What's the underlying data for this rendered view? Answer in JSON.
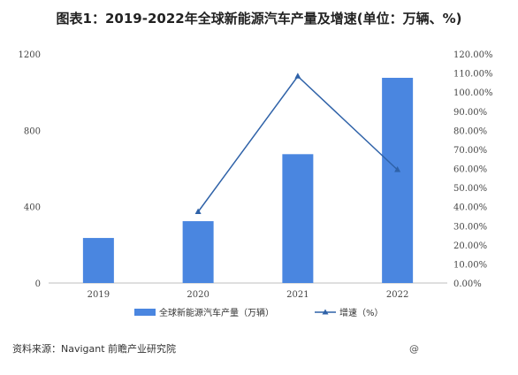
{
  "chart_data": {
    "type": "bar",
    "title": "图表1：2019-2022年全球新能源汽车产量及增速(单位：万辆、%)",
    "categories": [
      "2019",
      "2020",
      "2021",
      "2022"
    ],
    "series": [
      {
        "name": "全球新能源汽车产量（万辆）",
        "type": "bar",
        "axis": "left",
        "values": [
          236,
          324,
          675,
          1075
        ],
        "color": "#4a86e0"
      },
      {
        "name": "增速（%）",
        "type": "line",
        "axis": "right",
        "values": [
          null,
          37.3,
          108.3,
          59.3
        ],
        "color": "#2f62a8"
      }
    ],
    "y_left": {
      "ylim": [
        0,
        1200
      ],
      "ticks": [
        "0",
        "400",
        "800",
        "1200"
      ]
    },
    "y_right": {
      "ylim": [
        0,
        120
      ],
      "ticks": [
        "0.00%",
        "10.00%",
        "20.00%",
        "30.00%",
        "40.00%",
        "50.00%",
        "60.00%",
        "70.00%",
        "80.00%",
        "90.00%",
        "100.00%",
        "110.00%",
        "120.00%"
      ]
    },
    "legend_position": "bottom",
    "grid": false
  },
  "source": "资料来源：Navigant 前瞻产业研究院",
  "source_mark": "@"
}
